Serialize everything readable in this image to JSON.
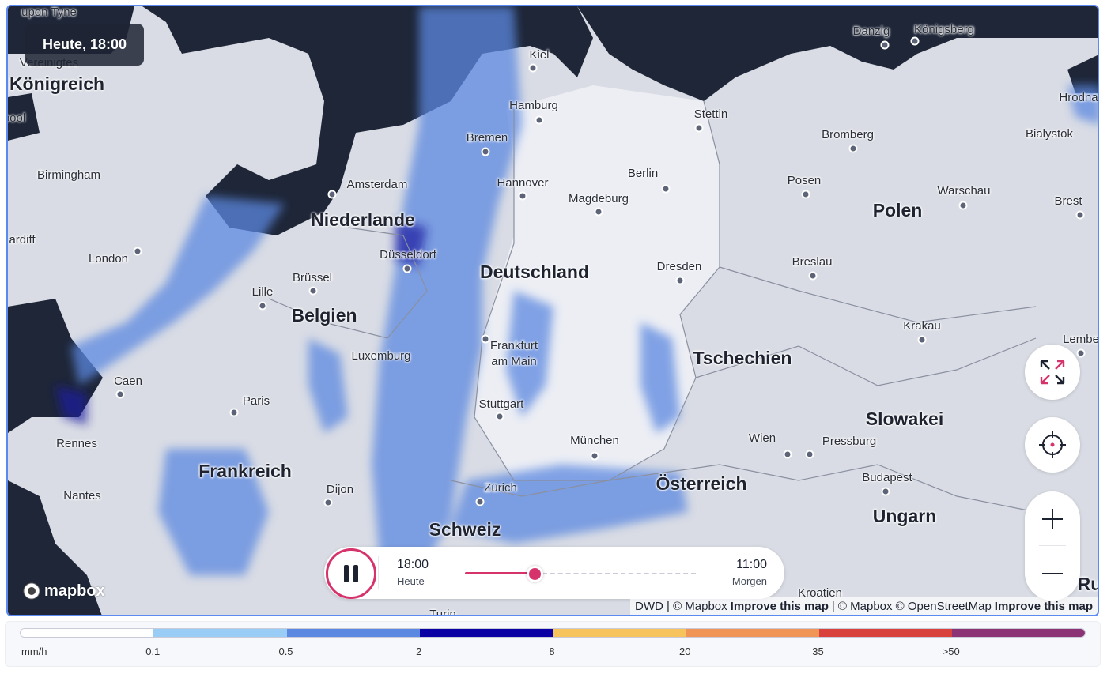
{
  "time_badge": "Heute, 18:00",
  "cities": [
    "upon Tyne",
    "Vereinigtes",
    "pool",
    "Birmingham",
    "London",
    "ardiff",
    "Amsterdam",
    "Düsseldorf",
    "Brüssel",
    "Lille",
    "Luxemburg",
    "Caen",
    "Paris",
    "Rennes",
    "Nantes",
    "Dijon",
    "Kiel",
    "Hamburg",
    "Bremen",
    "Hannover",
    "Magdeburg",
    "Berlin",
    "Stettin",
    "Dresden",
    "Frankfurt\nam Main",
    "Stuttgart",
    "München",
    "Zürich",
    "Wien",
    "Pressburg",
    "Budapest",
    "Kroatien",
    "Turin",
    "Königsberg",
    "Danzig",
    "Hrodna",
    "Bialystok",
    "Bromberg",
    "Posen",
    "Warschau",
    "Brest",
    "Breslau",
    "Krakau",
    "Lembe"
  ],
  "countries": [
    "Königreich",
    "Niederlande",
    "Belgien",
    "Frankreich",
    "Deutschland",
    "Schweiz",
    "Österreich",
    "Tschechien",
    "Slowakei",
    "Ungarn",
    "Polen",
    "Ru"
  ],
  "controls": {
    "fullscreen_icon": "expand-arrows",
    "locate_icon": "crosshair",
    "zoom_in": "+",
    "zoom_out": "−"
  },
  "player": {
    "state": "playing",
    "start_time": "18:00",
    "start_day": "Heute",
    "end_time": "11:00",
    "end_day": "Morgen",
    "progress_percent": 30
  },
  "attribution": {
    "source": "DWD | © Mapbox",
    "improve1": "Improve this map",
    "sep": "| © Mapbox © OpenStreetMap",
    "improve2": "Improve this map"
  },
  "logo": "mapbox",
  "legend": {
    "unit": "mm/h",
    "ticks": [
      "0.1",
      "0.5",
      "2",
      "8",
      "20",
      "35",
      ">50"
    ],
    "colors": [
      "#ffffff",
      "#9acdf5",
      "#5b88e0",
      "#0b00a3",
      "#f6c35c",
      "#f09556",
      "#d9423c",
      "#8b3374"
    ]
  },
  "colors": {
    "accent": "#d6336c",
    "sea": "#1e2638",
    "land": "#d9dce4",
    "radar": "#5b88e0"
  }
}
